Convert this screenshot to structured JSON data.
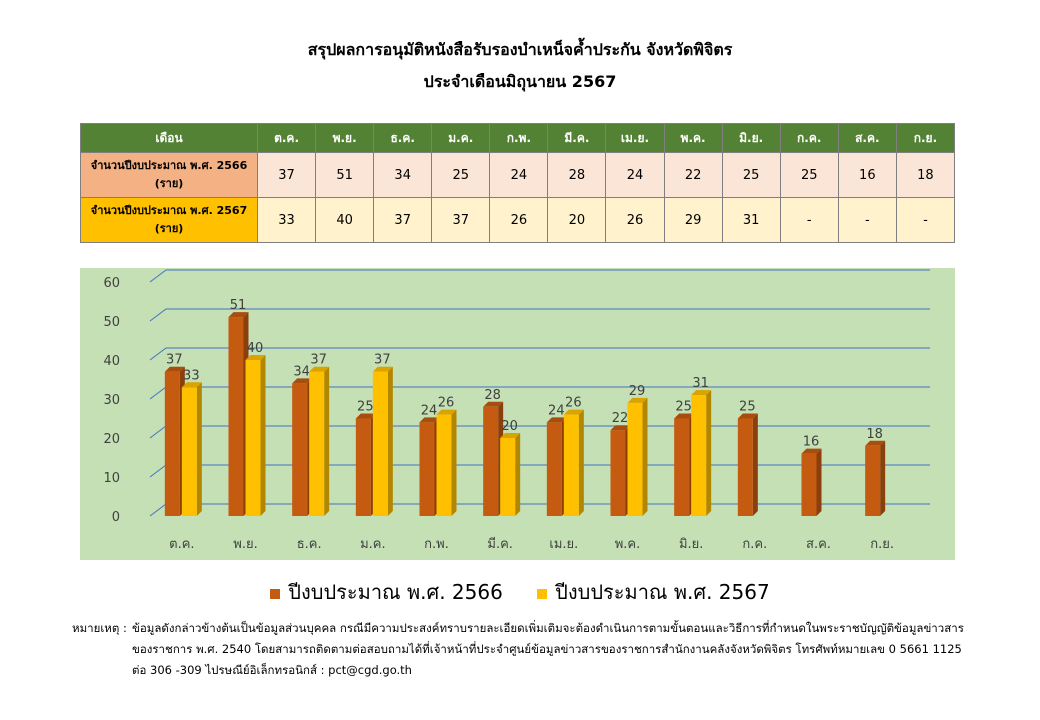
{
  "header": {
    "title": "สรุปผลการอนุมัติหนังสือรับรองบำเหน็จค้ำประกัน จังหวัดพิจิตร",
    "subtitle": "ประจำเดือนมิถุนายน 2567"
  },
  "table": {
    "head_label": "เดือน",
    "months": [
      "ต.ค.",
      "พ.ย.",
      "ธ.ค.",
      "ม.ค.",
      "ก.พ.",
      "มี.ค.",
      "เม.ย.",
      "พ.ค.",
      "มิ.ย.",
      "ก.ค.",
      "ส.ค.",
      "ก.ย."
    ],
    "rows": [
      {
        "label_1": "จำนวนปีงบประมาณ พ.ศ. 2566",
        "label_2": "(ราย)",
        "values": [
          "37",
          "51",
          "34",
          "25",
          "24",
          "28",
          "24",
          "22",
          "25",
          "25",
          "16",
          "18"
        ]
      },
      {
        "label_1": "จำนวนปีงบประมาณ พ.ศ. 2567",
        "label_2": "(ราย)",
        "values": [
          "33",
          "40",
          "37",
          "37",
          "26",
          "20",
          "26",
          "29",
          "31",
          "-",
          "-",
          "-"
        ]
      }
    ]
  },
  "chart_data": {
    "type": "bar",
    "categories": [
      "ต.ค.",
      "พ.ย.",
      "ธ.ค.",
      "ม.ค.",
      "ก.พ.",
      "มี.ค.",
      "เม.ย.",
      "พ.ค.",
      "มิ.ย.",
      "ก.ค.",
      "ส.ค.",
      "ก.ย."
    ],
    "series": [
      {
        "name": "ปีงบประมาณ พ.ศ. 2566",
        "color": "#c55a11",
        "values": [
          37,
          51,
          34,
          25,
          24,
          28,
          24,
          22,
          25,
          25,
          16,
          18
        ]
      },
      {
        "name": "ปีงบประมาณ พ.ศ. 2567",
        "color": "#ffc000",
        "values": [
          33,
          40,
          37,
          37,
          26,
          20,
          26,
          29,
          31,
          null,
          null,
          null
        ]
      }
    ],
    "yticks": [
      0,
      10,
      20,
      30,
      40,
      50,
      60
    ],
    "ylim": [
      0,
      60
    ],
    "grid": true,
    "legend": "bottom",
    "background": "#c5e0b4"
  },
  "note": {
    "head": "หมายเหตุ :",
    "lines": [
      "ข้อมูลดังกล่าวข้างต้นเป็นข้อมูลส่วนบุคคล กรณีมีความประสงค์ทราบรายละเอียดเพิ่มเติมจะต้องดำเนินการตามขั้นตอนและวิธีการที่กำหนดในพระราชบัญญัติข้อมูลข่าวสาร",
      "ของราชการ พ.ศ. 2540 โดยสามารถติดตามต่อสอบถามได้ที่เจ้าหน้าที่ประจำศูนย์ข้อมูลข่าวสารของราชการสำนักงานคลังจังหวัดพิจิตร โทรศัพท์หมายเลข 0 5661 1125",
      "ต่อ 306 -309 ไปรษณีย์อิเล็กทรอนิกส์ : pct@cgd.go.th"
    ]
  }
}
